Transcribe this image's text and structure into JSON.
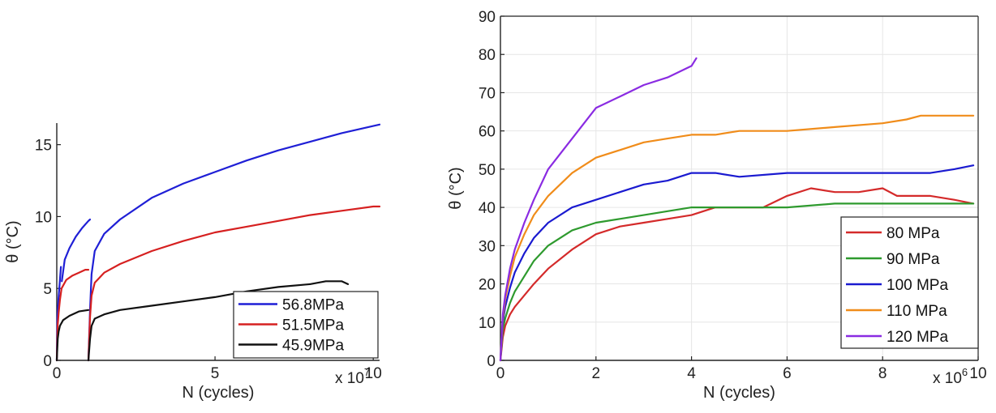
{
  "chart_data": [
    {
      "type": "line",
      "xlabel": "N (cycles)",
      "ylabel": "θ (°C)",
      "x_multiplier": {
        "base": "x 10",
        "exp": "7"
      },
      "xlim": [
        0,
        10.2
      ],
      "ylim": [
        0,
        16.5
      ],
      "xticks": [
        "0",
        "5",
        "10"
      ],
      "yticks": [
        "0",
        "5",
        "10",
        "15"
      ],
      "grid": false,
      "legend_position": "bottom-right",
      "series": [
        {
          "name": "56.8MPa",
          "color": "#1f1fd6",
          "segments": [
            {
              "x": [
                0.0,
                0.02,
                0.05,
                0.08,
                0.1,
                0.12,
                0.13
              ],
              "y": [
                0,
                3.0,
                4.2,
                5.0,
                5.6,
                6.2,
                6.5
              ]
            },
            {
              "x": [
                0.16,
                0.25,
                0.4,
                0.6,
                0.8,
                1.0,
                1.05
              ],
              "y": [
                5.5,
                7.0,
                7.8,
                8.6,
                9.2,
                9.7,
                9.8
              ]
            },
            {
              "x": [
                1.0,
                1.05,
                1.1,
                1.2,
                1.5,
                2.0,
                3.0,
                4.0,
                5.0,
                6.0,
                7.0,
                8.0,
                9.0,
                10.0,
                10.2
              ],
              "y": [
                0,
                3.5,
                6.0,
                7.6,
                8.8,
                9.8,
                11.3,
                12.3,
                13.1,
                13.9,
                14.6,
                15.2,
                15.8,
                16.3,
                16.4
              ]
            }
          ]
        },
        {
          "name": "51.5MPa",
          "color": "#d62020",
          "segments": [
            {
              "x": [
                0.0,
                0.03,
                0.06,
                0.1,
                0.15,
                0.3,
                0.5,
                0.7,
                0.9,
                1.0
              ],
              "y": [
                0,
                2.5,
                3.3,
                4.2,
                5.0,
                5.6,
                5.9,
                6.1,
                6.3,
                6.3
              ]
            },
            {
              "x": [
                1.0,
                1.05,
                1.1,
                1.2,
                1.5,
                2.0,
                3.0,
                4.0,
                5.0,
                6.0,
                7.0,
                8.0,
                9.0,
                10.0,
                10.2
              ],
              "y": [
                0,
                3.0,
                4.5,
                5.4,
                6.1,
                6.7,
                7.6,
                8.3,
                8.9,
                9.3,
                9.7,
                10.1,
                10.4,
                10.7,
                10.7
              ]
            }
          ]
        },
        {
          "name": "45.9MPa",
          "color": "#111111",
          "segments": [
            {
              "x": [
                0.0,
                0.03,
                0.06,
                0.1,
                0.2,
                0.4,
                0.7,
                1.0
              ],
              "y": [
                0,
                1.5,
                2.0,
                2.4,
                2.8,
                3.1,
                3.4,
                3.5
              ]
            },
            {
              "x": [
                1.0,
                1.05,
                1.1,
                1.2,
                1.5,
                2.0,
                3.0,
                4.0,
                5.0,
                6.0,
                7.0,
                8.0,
                8.5,
                9.0,
                9.2
              ],
              "y": [
                0,
                1.5,
                2.4,
                2.9,
                3.2,
                3.5,
                3.8,
                4.1,
                4.4,
                4.8,
                5.1,
                5.3,
                5.5,
                5.5,
                5.3
              ]
            }
          ]
        }
      ]
    },
    {
      "type": "line",
      "xlabel": "N (cycles)",
      "ylabel": "θ (°C)",
      "x_multiplier": {
        "base": "x 10",
        "exp": "6"
      },
      "xlim": [
        0,
        10
      ],
      "ylim": [
        0,
        90
      ],
      "xticks": [
        "0",
        "2",
        "4",
        "6",
        "8",
        "10"
      ],
      "yticks": [
        "0",
        "10",
        "20",
        "30",
        "40",
        "50",
        "60",
        "70",
        "80",
        "90"
      ],
      "grid": true,
      "legend_position": "bottom-right",
      "series": [
        {
          "name": "80 MPa",
          "color": "#d42a2a",
          "x": [
            0,
            0.05,
            0.1,
            0.2,
            0.3,
            0.5,
            0.7,
            1.0,
            1.5,
            2.0,
            2.5,
            3.0,
            3.5,
            4.0,
            4.5,
            5.0,
            5.5,
            6.0,
            6.5,
            7.0,
            7.5,
            8.0,
            8.3,
            8.5,
            9.0,
            9.5,
            9.9
          ],
          "y": [
            0,
            6,
            9,
            12,
            14,
            17,
            20,
            24,
            29,
            33,
            35,
            36,
            37,
            38,
            40,
            40,
            40,
            43,
            45,
            44,
            44,
            45,
            43,
            43,
            43,
            42,
            41
          ]
        },
        {
          "name": "90 MPa",
          "color": "#2e9a2e",
          "x": [
            0,
            0.05,
            0.1,
            0.2,
            0.3,
            0.5,
            0.7,
            1.0,
            1.5,
            2.0,
            2.5,
            3.0,
            3.5,
            4.0,
            5.0,
            6.0,
            7.0,
            8.0,
            9.0,
            9.9
          ],
          "y": [
            0,
            8,
            11,
            15,
            18,
            22,
            26,
            30,
            34,
            36,
            37,
            38,
            39,
            40,
            40,
            40,
            41,
            41,
            41,
            41
          ]
        },
        {
          "name": "100 MPa",
          "color": "#1a1ad0",
          "x": [
            0,
            0.05,
            0.1,
            0.2,
            0.3,
            0.5,
            0.7,
            1.0,
            1.5,
            2.0,
            2.5,
            3.0,
            3.5,
            4.0,
            4.5,
            5.0,
            6.0,
            7.0,
            8.0,
            9.0,
            9.5,
            9.9
          ],
          "y": [
            0,
            10,
            14,
            19,
            23,
            28,
            32,
            36,
            40,
            42,
            44,
            46,
            47,
            49,
            49,
            48,
            49,
            49,
            49,
            49,
            50,
            51
          ]
        },
        {
          "name": "110 MPa",
          "color": "#f08c1a",
          "x": [
            0,
            0.05,
            0.1,
            0.2,
            0.3,
            0.5,
            0.7,
            1.0,
            1.5,
            2.0,
            2.5,
            3.0,
            3.5,
            4.0,
            4.5,
            5.0,
            6.0,
            7.0,
            8.0,
            8.5,
            8.8,
            9.0,
            9.5,
            9.9
          ],
          "y": [
            0,
            11,
            16,
            22,
            27,
            33,
            38,
            43,
            49,
            53,
            55,
            57,
            58,
            59,
            59,
            60,
            60,
            61,
            62,
            63,
            64,
            64,
            64,
            64
          ]
        },
        {
          "name": "120 MPa",
          "color": "#8a2be2",
          "x": [
            0,
            0.05,
            0.1,
            0.2,
            0.3,
            0.5,
            0.7,
            1.0,
            1.5,
            2.0,
            2.5,
            3.0,
            3.5,
            4.0,
            4.1
          ],
          "y": [
            0,
            12,
            17,
            24,
            29,
            36,
            42,
            50,
            58,
            66,
            69,
            72,
            74,
            77,
            79
          ]
        }
      ]
    }
  ]
}
